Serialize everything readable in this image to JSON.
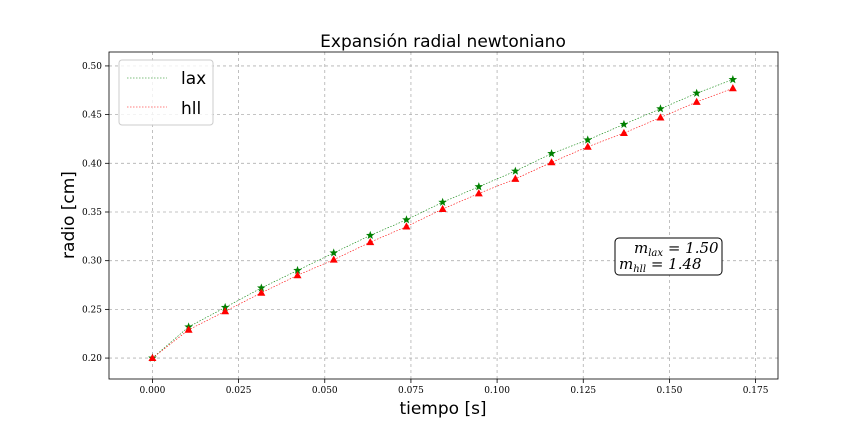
{
  "chart_data": {
    "type": "line",
    "title": "Expansión radial newtoniano",
    "xlabel": "tiempo [s]",
    "ylabel": "radio [cm]",
    "xlim": [
      -0.0126,
      0.1815
    ],
    "ylim": [
      0.1785,
      0.5143
    ],
    "xticks": [
      0.0,
      0.025,
      0.05,
      0.075,
      0.1,
      0.125,
      0.15,
      0.175
    ],
    "xtick_labels": [
      "0.000",
      "0.025",
      "0.050",
      "0.075",
      "0.100",
      "0.125",
      "0.150",
      "0.175"
    ],
    "yticks": [
      0.2,
      0.25,
      0.3,
      0.35,
      0.4,
      0.45,
      0.5
    ],
    "ytick_labels": [
      "0.20",
      "0.25",
      "0.30",
      "0.35",
      "0.40",
      "0.45",
      "0.50"
    ],
    "grid": true,
    "legend_position": "top-left",
    "x": [
      0.0,
      0.0105,
      0.0211,
      0.0316,
      0.0421,
      0.0526,
      0.0632,
      0.0737,
      0.0842,
      0.0947,
      0.1053,
      0.1158,
      0.1263,
      0.1368,
      0.1474,
      0.1579,
      0.1684
    ],
    "series": [
      {
        "name": "lax",
        "color": "#008000",
        "marker": "star",
        "values": [
          0.2,
          0.232,
          0.252,
          0.272,
          0.29,
          0.308,
          0.326,
          0.342,
          0.36,
          0.376,
          0.392,
          0.41,
          0.424,
          0.44,
          0.456,
          0.472,
          0.486
        ]
      },
      {
        "name": "hll",
        "color": "#ff0000",
        "marker": "triangle",
        "values": [
          0.2,
          0.229,
          0.248,
          0.267,
          0.285,
          0.301,
          0.319,
          0.335,
          0.353,
          0.369,
          0.384,
          0.401,
          0.417,
          0.431,
          0.447,
          0.463,
          0.477
        ]
      }
    ],
    "annotations": [
      "m_lax = 1.50",
      "m_hll = 1.48"
    ]
  }
}
